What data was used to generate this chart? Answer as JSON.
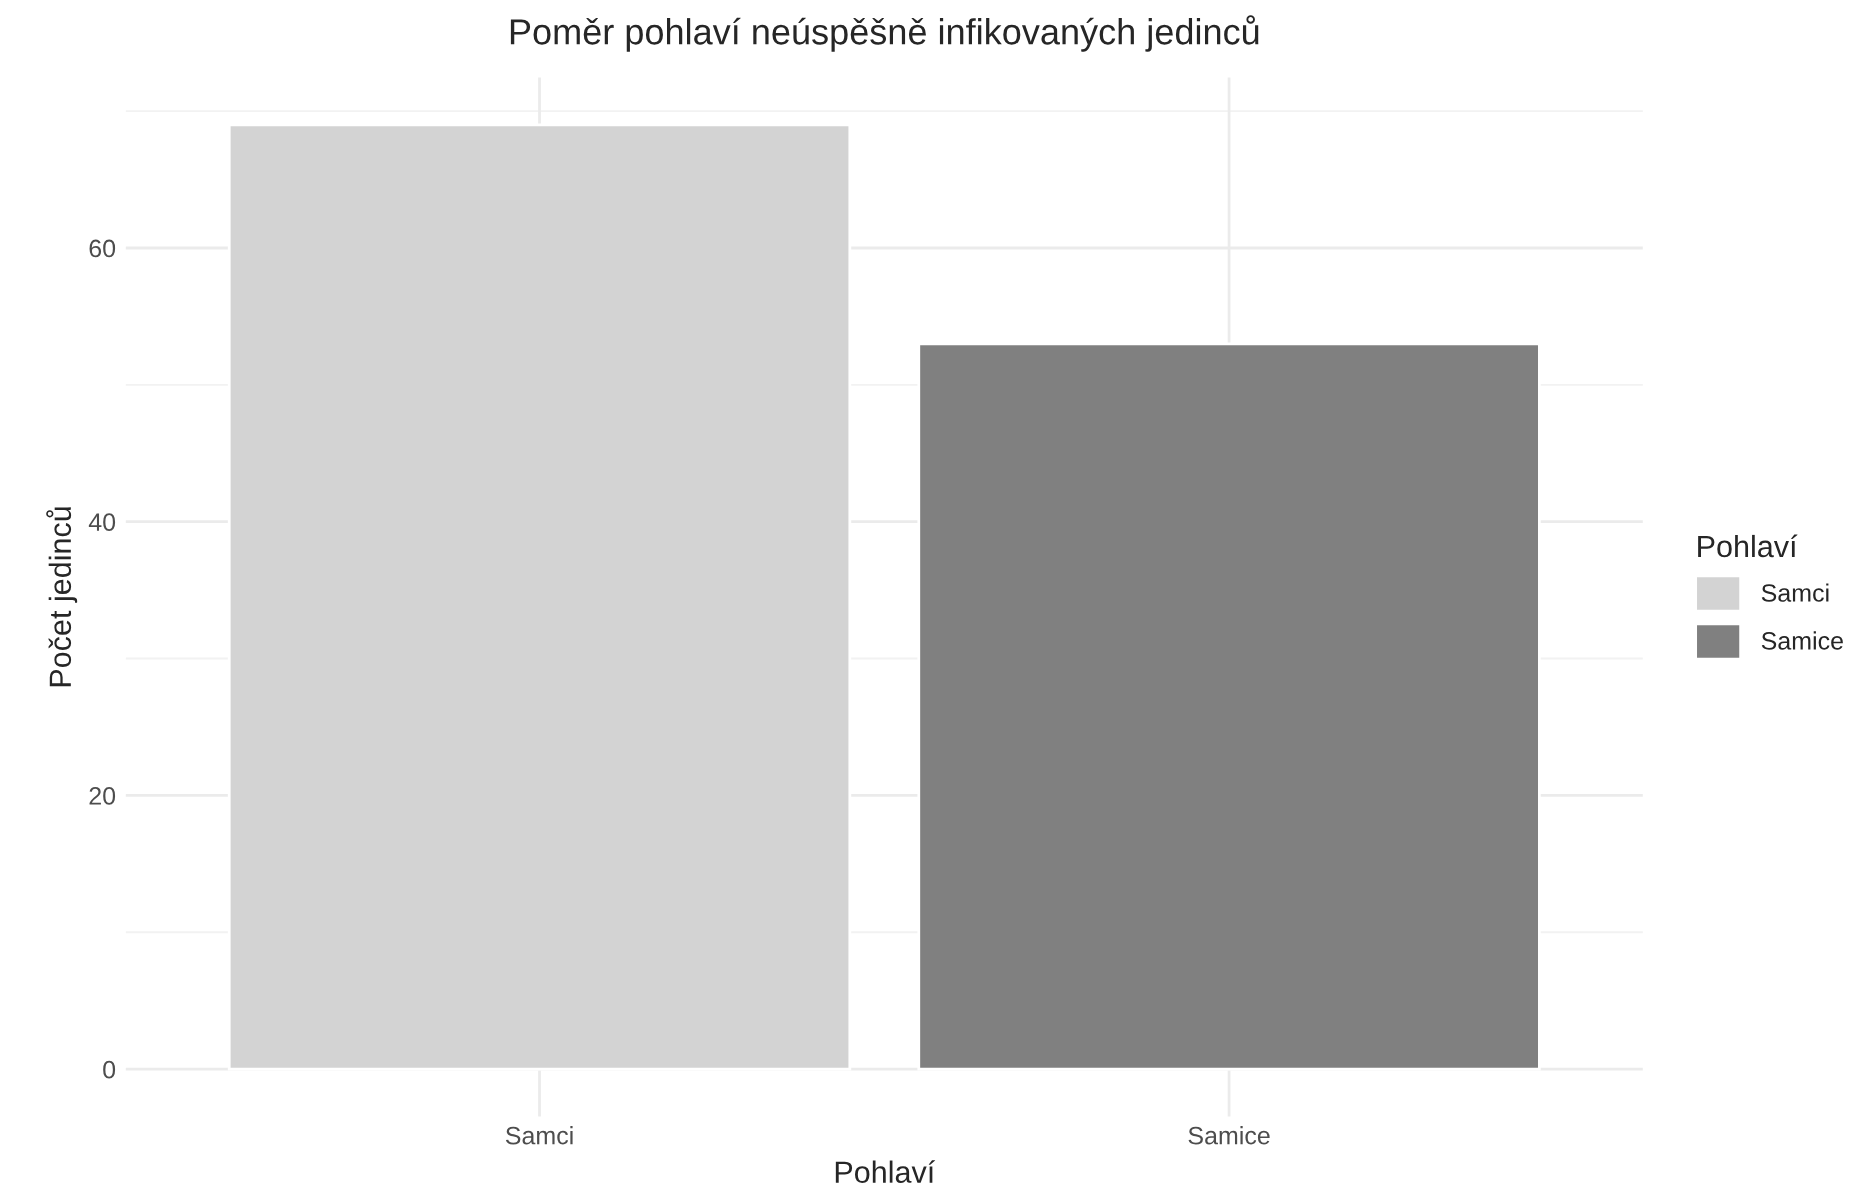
{
  "chart_data": {
    "type": "bar",
    "title": "Poměr pohlaví neúspěšně infikovaných jedinců",
    "xlabel": "Pohlaví",
    "ylabel": "Počet jedinců",
    "legend_title": "Pohlaví",
    "categories": [
      "Samci",
      "Samice"
    ],
    "series": [
      {
        "name": "Samci",
        "color": "#d3d3d3",
        "values": [
          69,
          null
        ]
      },
      {
        "name": "Samice",
        "color": "#808080",
        "values": [
          null,
          53
        ]
      }
    ],
    "ylim": [
      -3.45,
      72.45
    ],
    "yticks": [
      0,
      20,
      40,
      60
    ],
    "grid": true,
    "legend": "right"
  }
}
